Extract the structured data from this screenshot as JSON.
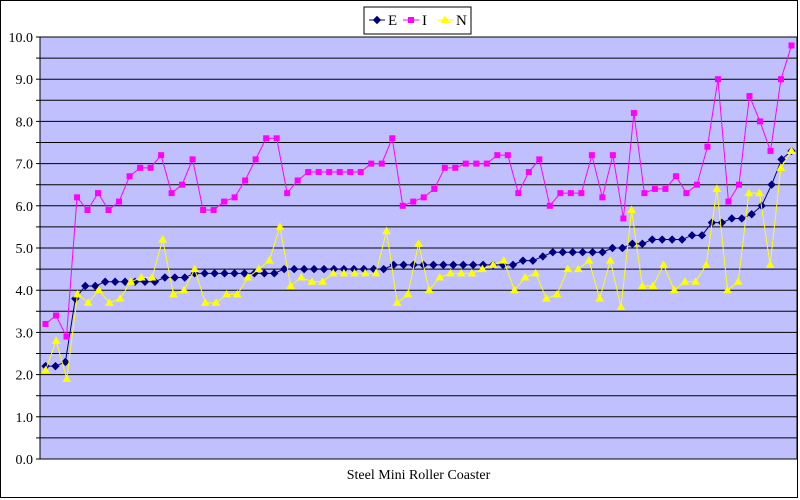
{
  "chart_data": {
    "type": "line",
    "title": "",
    "xlabel": "Steel Mini Roller Coaster",
    "ylabel": "",
    "ylim": [
      0,
      10
    ],
    "ytick_step": 0.5,
    "ytick_label_step": 1,
    "ytick_format": 1,
    "grid": true,
    "legend_position": "top-center",
    "plot_background": "#c0c0ff",
    "series": [
      {
        "name": "E",
        "color": "#000080",
        "marker": "diamond",
        "values": [
          2.2,
          2.2,
          2.3,
          3.8,
          4.1,
          4.1,
          4.2,
          4.2,
          4.2,
          4.2,
          4.2,
          4.2,
          4.3,
          4.3,
          4.3,
          4.4,
          4.4,
          4.4,
          4.4,
          4.4,
          4.4,
          4.4,
          4.4,
          4.4,
          4.5,
          4.5,
          4.5,
          4.5,
          4.5,
          4.5,
          4.5,
          4.5,
          4.5,
          4.5,
          4.5,
          4.6,
          4.6,
          4.6,
          4.6,
          4.6,
          4.6,
          4.6,
          4.6,
          4.6,
          4.6,
          4.6,
          4.6,
          4.6,
          4.7,
          4.7,
          4.8,
          4.9,
          4.9,
          4.9,
          4.9,
          4.9,
          4.9,
          5.0,
          5.0,
          5.1,
          5.1,
          5.2,
          5.2,
          5.2,
          5.2,
          5.3,
          5.3,
          5.6,
          5.6,
          5.7,
          5.7,
          5.8,
          6.0,
          6.5,
          7.1,
          7.3
        ]
      },
      {
        "name": "I",
        "color": "#ff00ff",
        "marker": "square",
        "values": [
          3.2,
          3.4,
          2.9,
          6.2,
          5.9,
          6.3,
          5.9,
          6.1,
          6.7,
          6.9,
          6.9,
          7.2,
          6.3,
          6.5,
          7.1,
          5.9,
          5.9,
          6.1,
          6.2,
          6.6,
          7.1,
          7.6,
          7.6,
          6.3,
          6.6,
          6.8,
          6.8,
          6.8,
          6.8,
          6.8,
          6.8,
          7.0,
          7.0,
          7.6,
          6.0,
          6.1,
          6.2,
          6.4,
          6.9,
          6.9,
          7.0,
          7.0,
          7.0,
          7.2,
          7.2,
          6.3,
          6.8,
          7.1,
          6.0,
          6.3,
          6.3,
          6.3,
          7.2,
          6.2,
          7.2,
          5.7,
          8.2,
          6.3,
          6.4,
          6.4,
          6.7,
          6.3,
          6.5,
          7.4,
          9.0,
          6.1,
          6.5,
          8.6,
          8.0,
          7.3,
          9.0,
          9.8
        ]
      },
      {
        "name": "N",
        "color": "#ffff00",
        "marker": "triangle",
        "values": [
          2.1,
          2.8,
          1.9,
          3.9,
          3.7,
          4.0,
          3.7,
          3.8,
          4.2,
          4.3,
          4.3,
          5.2,
          3.9,
          4.0,
          4.5,
          3.7,
          3.7,
          3.9,
          3.9,
          4.3,
          4.5,
          4.7,
          5.5,
          4.1,
          4.3,
          4.2,
          4.2,
          4.4,
          4.4,
          4.4,
          4.4,
          4.4,
          5.4,
          3.7,
          3.9,
          5.1,
          4.0,
          4.3,
          4.4,
          4.4,
          4.4,
          4.5,
          4.6,
          4.7,
          4.0,
          4.3,
          4.4,
          3.8,
          3.9,
          4.5,
          4.5,
          4.7,
          3.8,
          4.7,
          3.6,
          5.9,
          4.1,
          4.1,
          4.6,
          4.0,
          4.2,
          4.2,
          4.6,
          6.4,
          4.0,
          4.2,
          6.3,
          6.3,
          4.6,
          6.9,
          7.3
        ]
      }
    ]
  }
}
